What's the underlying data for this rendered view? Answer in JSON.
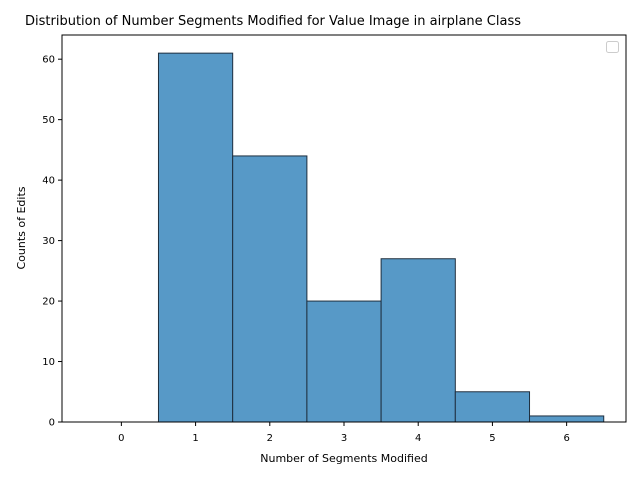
{
  "chart_data": {
    "type": "bar",
    "title": "Distribution of Number Segments Modified for Value Image in airplane Class",
    "xlabel": "Number of Segments Modified",
    "ylabel": "Counts of Edits",
    "categories": [
      "0",
      "1",
      "2",
      "3",
      "4",
      "5",
      "6"
    ],
    "values": [
      0,
      61,
      44,
      20,
      27,
      5,
      1
    ],
    "xlim": [
      -0.8,
      6.8
    ],
    "ylim": [
      0,
      64
    ],
    "yticks": [
      0,
      10,
      20,
      30,
      40,
      50,
      60
    ],
    "bar_color": "#5799c7",
    "edge_color": "#1f2f3f",
    "legend": "top-right",
    "legend_entries": [],
    "grid": false
  }
}
